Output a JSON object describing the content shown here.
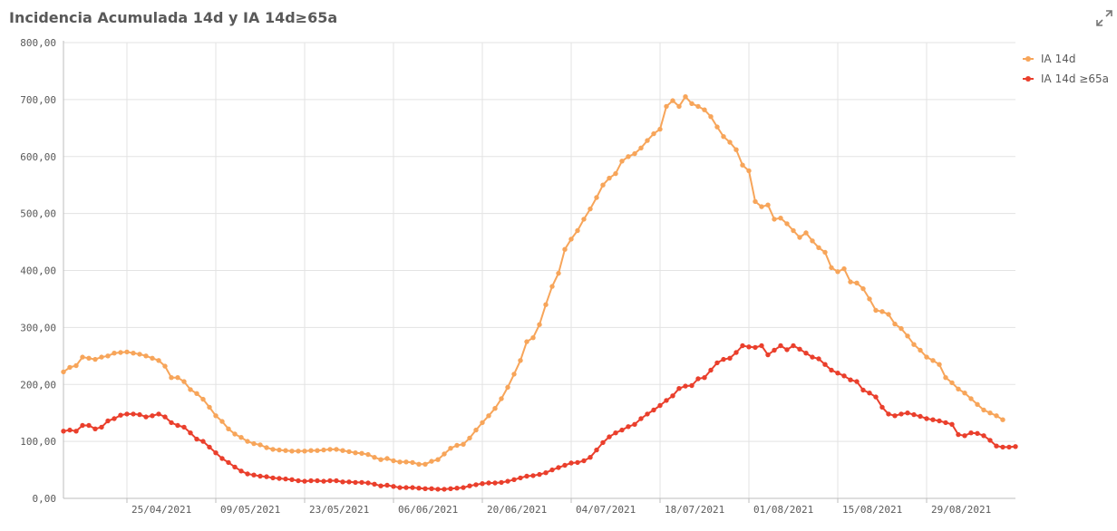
{
  "header": {
    "title": "Incidencia Acumulada 14d y IA 14d≥65a"
  },
  "toolbar": {
    "expand_icon": "expand-icon"
  },
  "colors": {
    "ia14d": "#f7a55a",
    "ia14d65": "#ea3f2c",
    "grid": "#e3e3e3",
    "axis": "#bdbdbd"
  },
  "chart_data": {
    "type": "line",
    "title": "Incidencia Acumulada 14d y IA 14d≥65a",
    "xlabel": "",
    "ylabel": "",
    "ylim": [
      0,
      800
    ],
    "grid": true,
    "legend_position": "top-right",
    "x_start": "2021-04-15",
    "y_ticks": [
      "0,00",
      "100,00",
      "200,00",
      "300,00",
      "400,00",
      "500,00",
      "600,00",
      "700,00",
      "800,00"
    ],
    "x_ticks": [
      "25/04/2021",
      "09/05/2021",
      "23/05/2021",
      "06/06/2021",
      "20/06/2021",
      "04/07/2021",
      "18/07/2021",
      "01/08/2021",
      "15/08/2021",
      "29/08/2021"
    ],
    "series": [
      {
        "name": "IA 14d",
        "color": "#f7a55a",
        "values": [
          222,
          230,
          233,
          248,
          246,
          244,
          248,
          250,
          255,
          256,
          257,
          255,
          253,
          250,
          246,
          242,
          232,
          212,
          212,
          205,
          191,
          184,
          174,
          160,
          145,
          135,
          122,
          113,
          107,
          100,
          96,
          94,
          89,
          86,
          85,
          84,
          83,
          83,
          83,
          84,
          84,
          85,
          86,
          86,
          84,
          82,
          80,
          79,
          77,
          72,
          68,
          70,
          66,
          64,
          64,
          63,
          60,
          60,
          65,
          68,
          78,
          88,
          93,
          95,
          106,
          120,
          133,
          145,
          158,
          175,
          195,
          218,
          242,
          275,
          282,
          305,
          340,
          372,
          395,
          437,
          455,
          470,
          490,
          508,
          528,
          550,
          562,
          570,
          592,
          600,
          605,
          615,
          628,
          640,
          648,
          688,
          698,
          688,
          705,
          693,
          688,
          682,
          670,
          652,
          635,
          625,
          612,
          585,
          575,
          521,
          512,
          515,
          490,
          492,
          482,
          470,
          458,
          466,
          452,
          440,
          432,
          405,
          398,
          403,
          380,
          378,
          368,
          350,
          330,
          328,
          323,
          306,
          298,
          285,
          270,
          260,
          248,
          242,
          235,
          212,
          203,
          192,
          185,
          175,
          165,
          155,
          150,
          145,
          138
        ]
      },
      {
        "name": "IA 14d ≥65a",
        "color": "#ea3f2c",
        "values": [
          118,
          120,
          118,
          128,
          128,
          122,
          125,
          136,
          140,
          146,
          148,
          148,
          147,
          143,
          145,
          148,
          143,
          133,
          128,
          125,
          115,
          104,
          100,
          90,
          80,
          70,
          63,
          55,
          48,
          43,
          41,
          39,
          38,
          36,
          35,
          34,
          33,
          31,
          30,
          31,
          31,
          30,
          31,
          31,
          29,
          29,
          28,
          28,
          27,
          25,
          22,
          23,
          21,
          19,
          19,
          19,
          18,
          17,
          17,
          16,
          16,
          17,
          18,
          19,
          22,
          24,
          26,
          27,
          27,
          28,
          30,
          33,
          36,
          39,
          40,
          42,
          45,
          50,
          54,
          58,
          62,
          63,
          66,
          72,
          85,
          98,
          108,
          115,
          120,
          126,
          130,
          140,
          148,
          155,
          163,
          172,
          180,
          193,
          197,
          198,
          210,
          212,
          225,
          238,
          244,
          246,
          256,
          268,
          266,
          265,
          268,
          252,
          260,
          268,
          261,
          268,
          262,
          255,
          248,
          245,
          235,
          225,
          220,
          215,
          208,
          205,
          190,
          185,
          178,
          160,
          148,
          145,
          148,
          150,
          147,
          144,
          140,
          138,
          136,
          133,
          130,
          112,
          110,
          115,
          114,
          110,
          102,
          92,
          90,
          90,
          91
        ]
      }
    ]
  }
}
